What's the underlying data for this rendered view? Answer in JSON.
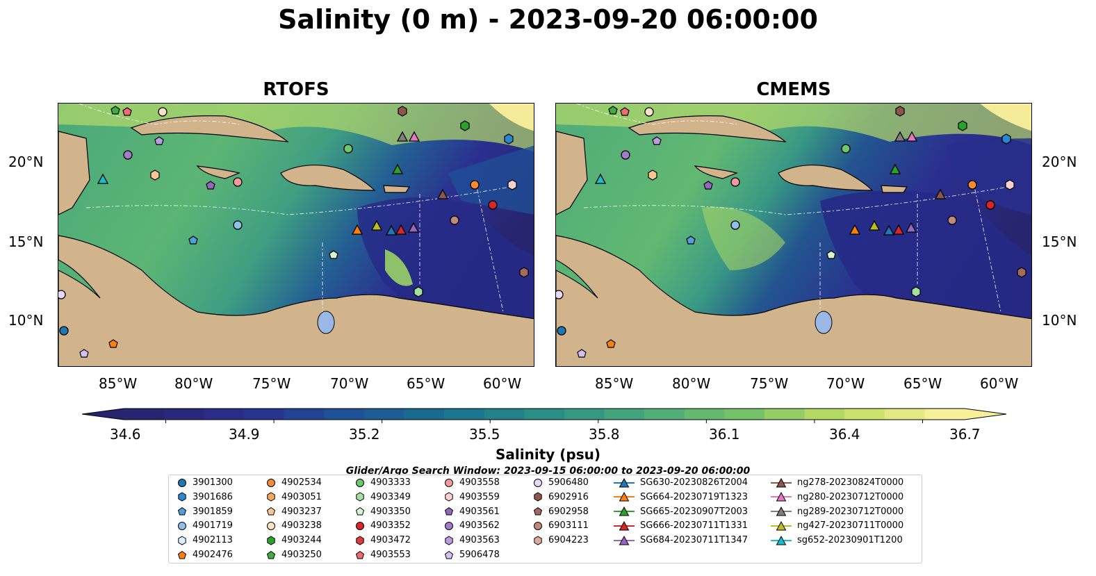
{
  "title": "Salinity (0 m) - 2023-09-20 06:00:00",
  "panels": [
    {
      "name": "rtofs",
      "title": "RTOFS"
    },
    {
      "name": "cmems",
      "title": "CMEMS"
    }
  ],
  "lat_ticks": [
    "20°N",
    "15°N",
    "10°N"
  ],
  "lon_ticks": [
    "85°W",
    "80°W",
    "75°W",
    "70°W",
    "65°W",
    "60°W"
  ],
  "colorbar": {
    "title": "Salinity (psu)",
    "ticks": [
      "34.6",
      "34.9",
      "35.2",
      "35.5",
      "35.8",
      "36.1",
      "36.4",
      "36.7"
    ],
    "colormap": [
      "#282570",
      "#2a2e8e",
      "#1f5196",
      "#19708f",
      "#2a8d86",
      "#49a87a",
      "#76c26a",
      "#c2dd63",
      "#f7f09a"
    ],
    "colors": {
      "land": "#d2b48c",
      "lake": "#99b8e6"
    }
  },
  "window_note": "Glider/Argo Search Window: 2023-09-15 06:00:00 to 2023-09-20 06:00:00",
  "legend": {
    "columns": [
      [
        {
          "label": "3901300",
          "marker": "circle",
          "color": "#1f77b4"
        },
        {
          "label": "3901686",
          "marker": "hexagon",
          "color": "#2b87d0"
        },
        {
          "label": "3901859",
          "marker": "pentagon",
          "color": "#4f9fd9"
        },
        {
          "label": "4901719",
          "marker": "circle",
          "color": "#8ec1ea"
        },
        {
          "label": "4902113",
          "marker": "hexagon",
          "color": "#dbeefc"
        },
        {
          "label": "4902476",
          "marker": "pentagon",
          "color": "#ff7f0e"
        }
      ],
      [
        {
          "label": "4902534",
          "marker": "circle",
          "color": "#f78b35"
        },
        {
          "label": "4903051",
          "marker": "hexagon",
          "color": "#f9a860"
        },
        {
          "label": "4903237",
          "marker": "pentagon",
          "color": "#fbc594"
        },
        {
          "label": "4903238",
          "marker": "circle",
          "color": "#fde3c6"
        },
        {
          "label": "4903244",
          "marker": "hexagon",
          "color": "#2ca02c"
        },
        {
          "label": "4903250",
          "marker": "pentagon",
          "color": "#3fae3f"
        }
      ],
      [
        {
          "label": "4903333",
          "marker": "circle",
          "color": "#6cc86c"
        },
        {
          "label": "4903349",
          "marker": "hexagon",
          "color": "#a6e0a0"
        },
        {
          "label": "4903350",
          "marker": "pentagon",
          "color": "#d5f5cf"
        },
        {
          "label": "4903352",
          "marker": "circle",
          "color": "#d62728"
        },
        {
          "label": "4903472",
          "marker": "hexagon",
          "color": "#e03a3c"
        },
        {
          "label": "4903553",
          "marker": "pentagon",
          "color": "#ee6d70"
        }
      ],
      [
        {
          "label": "4903558",
          "marker": "circle",
          "color": "#f49a9a"
        },
        {
          "label": "4903559",
          "marker": "hexagon",
          "color": "#fad1d1"
        },
        {
          "label": "4903561",
          "marker": "pentagon",
          "color": "#9467bd"
        },
        {
          "label": "4903562",
          "marker": "circle",
          "color": "#a37bcc"
        },
        {
          "label": "4903563",
          "marker": "hexagon",
          "color": "#bb9ce0"
        },
        {
          "label": "5906478",
          "marker": "pentagon",
          "color": "#d4bff0"
        }
      ],
      [
        {
          "label": "5906480",
          "marker": "circle",
          "color": "#e8d8fb"
        },
        {
          "label": "6902916",
          "marker": "hexagon",
          "color": "#8c564b"
        },
        {
          "label": "6902958",
          "marker": "pentagon",
          "color": "#a26a5e"
        },
        {
          "label": "6903111",
          "marker": "circle",
          "color": "#bf8a7b"
        },
        {
          "label": "6904223",
          "marker": "hexagon",
          "color": "#dcab98"
        }
      ],
      [
        {
          "label": "SG630-20230826T2004",
          "marker": "triangle",
          "color": "#1f77b4"
        },
        {
          "label": "SG664-20230719T1323",
          "marker": "triangle",
          "color": "#ff7f0e"
        },
        {
          "label": "SG665-20230907T2003",
          "marker": "triangle",
          "color": "#2ca02c"
        },
        {
          "label": "SG666-20230711T1331",
          "marker": "triangle",
          "color": "#d62728"
        },
        {
          "label": "SG684-20230711T1347",
          "marker": "triangle",
          "color": "#9467bd"
        }
      ],
      [
        {
          "label": "ng278-20230824T0000",
          "marker": "triangle",
          "color": "#8c564b"
        },
        {
          "label": "ng280-20230712T0000",
          "marker": "triangle",
          "color": "#e377c2"
        },
        {
          "label": "ng289-20230712T0000",
          "marker": "triangle",
          "color": "#7f7f7f"
        },
        {
          "label": "ng427-20230711T0000",
          "marker": "triangle",
          "color": "#bcbd22"
        },
        {
          "label": "sg652-20230901T1200",
          "marker": "triangle",
          "color": "#17becf"
        }
      ]
    ]
  }
}
